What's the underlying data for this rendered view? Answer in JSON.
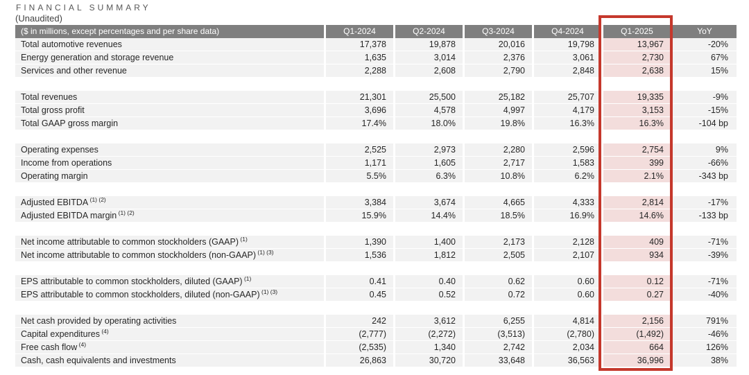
{
  "header": {
    "title": "FINANCIAL SUMMARY",
    "subtitle": "(Unaudited)"
  },
  "colors": {
    "table_header_bg": "#7f7f7f",
    "table_header_text": "#ffffff",
    "row_bg": "#f2f2f2",
    "highlight_column_bg": "#f3dddc",
    "highlight_border": "#c5382c",
    "body_text": "#262626"
  },
  "table": {
    "highlighted_column": "Q1-2025",
    "header": {
      "label": "($ in millions, except percentages and per share data)",
      "columns": [
        "Q1-2024",
        "Q2-2024",
        "Q3-2024",
        "Q4-2024",
        "Q1-2025",
        "YoY"
      ]
    },
    "rows": [
      {
        "label": "Total automotive revenues",
        "sup": "",
        "values": [
          "17,378",
          "19,878",
          "20,016",
          "19,798",
          "13,967",
          "-20%"
        ]
      },
      {
        "label": "Energy generation and storage revenue",
        "sup": "",
        "values": [
          "1,635",
          "3,014",
          "2,376",
          "3,061",
          "2,730",
          "67%"
        ]
      },
      {
        "label": "Services and other revenue",
        "sup": "",
        "values": [
          "2,288",
          "2,608",
          "2,790",
          "2,848",
          "2,638",
          "15%"
        ]
      },
      {
        "spacer": true
      },
      {
        "label": "Total revenues",
        "sup": "",
        "values": [
          "21,301",
          "25,500",
          "25,182",
          "25,707",
          "19,335",
          "-9%"
        ]
      },
      {
        "label": "Total gross profit",
        "sup": "",
        "values": [
          "3,696",
          "4,578",
          "4,997",
          "4,179",
          "3,153",
          "-15%"
        ]
      },
      {
        "label": "Total GAAP gross margin",
        "sup": "",
        "values": [
          "17.4%",
          "18.0%",
          "19.8%",
          "16.3%",
          "16.3%",
          "-104 bp"
        ]
      },
      {
        "spacer": true
      },
      {
        "label": "Operating expenses",
        "sup": "",
        "values": [
          "2,525",
          "2,973",
          "2,280",
          "2,596",
          "2,754",
          "9%"
        ]
      },
      {
        "label": "Income from operations",
        "sup": "",
        "values": [
          "1,171",
          "1,605",
          "2,717",
          "1,583",
          "399",
          "-66%"
        ]
      },
      {
        "label": "Operating margin",
        "sup": "",
        "values": [
          "5.5%",
          "6.3%",
          "10.8%",
          "6.2%",
          "2.1%",
          "-343 bp"
        ]
      },
      {
        "spacer": true
      },
      {
        "label": "Adjusted EBITDA",
        "sup": "(1) (2)",
        "values": [
          "3,384",
          "3,674",
          "4,665",
          "4,333",
          "2,814",
          "-17%"
        ]
      },
      {
        "label": "Adjusted EBITDA margin",
        "sup": "(1) (2)",
        "values": [
          "15.9%",
          "14.4%",
          "18.5%",
          "16.9%",
          "14.6%",
          "-133 bp"
        ]
      },
      {
        "spacer": true
      },
      {
        "label": "Net income attributable to common stockholders (GAAP)",
        "sup": "(1)",
        "values": [
          "1,390",
          "1,400",
          "2,173",
          "2,128",
          "409",
          "-71%"
        ]
      },
      {
        "label": "Net income attributable to common stockholders (non-GAAP)",
        "sup": "(1) (3)",
        "values": [
          "1,536",
          "1,812",
          "2,505",
          "2,107",
          "934",
          "-39%"
        ]
      },
      {
        "spacer": true
      },
      {
        "label": "EPS attributable to common stockholders, diluted (GAAP)",
        "sup": "(1)",
        "values": [
          "0.41",
          "0.40",
          "0.62",
          "0.60",
          "0.12",
          "-71%"
        ]
      },
      {
        "label": "EPS attributable to common stockholders, diluted (non-GAAP)",
        "sup": "(1) (3)",
        "values": [
          "0.45",
          "0.52",
          "0.72",
          "0.60",
          "0.27",
          "-40%"
        ]
      },
      {
        "spacer": true
      },
      {
        "label": "Net cash provided by operating activities",
        "sup": "",
        "values": [
          "242",
          "3,612",
          "6,255",
          "4,814",
          "2,156",
          "791%"
        ]
      },
      {
        "label": "Capital expenditures",
        "sup": "(4)",
        "values": [
          "(2,777)",
          "(2,272)",
          "(3,513)",
          "(2,780)",
          "(1,492)",
          "-46%"
        ]
      },
      {
        "label": "Free cash flow",
        "sup": "(4)",
        "values": [
          "(2,535)",
          "1,340",
          "2,742",
          "2,034",
          "664",
          "126%"
        ]
      },
      {
        "label": "Cash, cash equivalents and investments",
        "sup": "",
        "values": [
          "26,863",
          "30,720",
          "33,648",
          "36,563",
          "36,996",
          "38%"
        ]
      }
    ]
  }
}
